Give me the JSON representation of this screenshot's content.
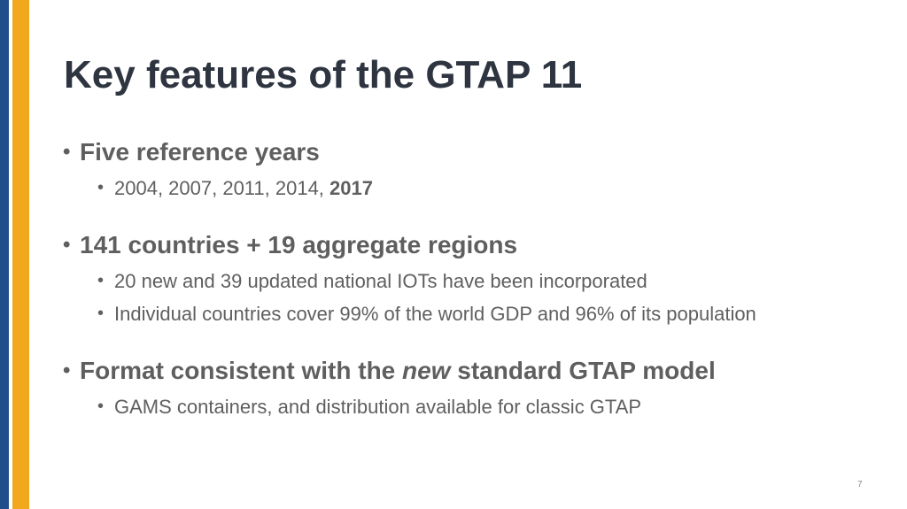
{
  "title": "Key features of the GTAP 11",
  "bullets": [
    {
      "runs": [
        {
          "text": "Five reference years"
        }
      ],
      "sub": [
        {
          "runs": [
            {
              "text": "2004, 2007, 2011, 2014, "
            },
            {
              "text": "2017",
              "bold": true
            }
          ]
        }
      ]
    },
    {
      "runs": [
        {
          "text": "141 countries + 19 aggregate regions"
        }
      ],
      "sub": [
        {
          "runs": [
            {
              "text": "20 new and 39 updated national IOTs have been incorporated"
            }
          ]
        },
        {
          "runs": [
            {
              "text": "Individual countries cover 99% of the world GDP and 96% of its population"
            }
          ]
        }
      ]
    },
    {
      "runs": [
        {
          "text": "Format consistent with the "
        },
        {
          "text": "new",
          "italic": true
        },
        {
          "text": " standard GTAP model"
        }
      ],
      "sub": [
        {
          "runs": [
            {
              "text": "GAMS containers, and distribution available for classic GTAP"
            }
          ]
        }
      ]
    }
  ],
  "page_number": 7
}
